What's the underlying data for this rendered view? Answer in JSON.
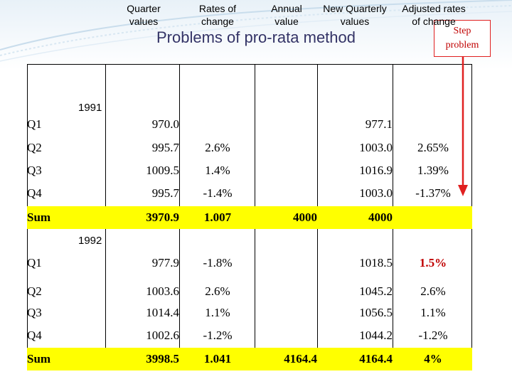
{
  "title": "Problems of pro-rata method",
  "callout": {
    "line1": "Step",
    "line2": "problem"
  },
  "headers": {
    "quarter_values": [
      "Quarter",
      "values"
    ],
    "rates_of_change": [
      "Rates of",
      "change"
    ],
    "annual_value": [
      "Annual",
      "value"
    ],
    "new_quarterly_values": [
      "New Quarterly",
      "values"
    ],
    "adjusted_rates": [
      "Adjusted rates",
      "of change"
    ]
  },
  "years": {
    "y1991": "1991",
    "y1992": "1992"
  },
  "rows_1991": [
    {
      "label": "Q1",
      "quarter": "970.0",
      "rate": "",
      "annual": "",
      "new": "977.1",
      "adjusted": ""
    },
    {
      "label": "Q2",
      "quarter": "995.7",
      "rate": "2.6%",
      "annual": "",
      "new": "1003.0",
      "adjusted": "2.65%"
    },
    {
      "label": "Q3",
      "quarter": "1009.5",
      "rate": "1.4%",
      "annual": "",
      "new": "1016.9",
      "adjusted": "1.39%"
    },
    {
      "label": "Q4",
      "quarter": "995.7",
      "rate": "-1.4%",
      "annual": "",
      "new": "1003.0",
      "adjusted": "-1.37%"
    }
  ],
  "sum_1991": {
    "label": "Sum",
    "quarter": "3970.9",
    "rate": "1.007",
    "annual": "4000",
    "new": "4000",
    "adjusted": ""
  },
  "rows_1992": [
    {
      "label": "Q1",
      "quarter": "977.9",
      "rate": "-1.8%",
      "annual": "",
      "new": "1018.5",
      "adjusted": "1.5%"
    },
    {
      "label": "Q2",
      "quarter": "1003.6",
      "rate": "2.6%",
      "annual": "",
      "new": "1045.2",
      "adjusted": "2.6%"
    },
    {
      "label": "Q3",
      "quarter": "1014.4",
      "rate": "1.1%",
      "annual": "",
      "new": "1056.5",
      "adjusted": "1.1%"
    },
    {
      "label": "Q4",
      "quarter": "1002.6",
      "rate": "-1.2%",
      "annual": "",
      "new": "1044.2",
      "adjusted": "-1.2%"
    }
  ],
  "sum_1992": {
    "label": "Sum",
    "quarter": "3998.5",
    "rate": "1.041",
    "annual": "4164.4",
    "new": "4164.4",
    "adjusted": "4%"
  },
  "colors": {
    "highlight": "#ffff00",
    "callout_border": "#e02020",
    "callout_text": "#c00000",
    "arrow": "#e02020",
    "title": "#333366"
  }
}
